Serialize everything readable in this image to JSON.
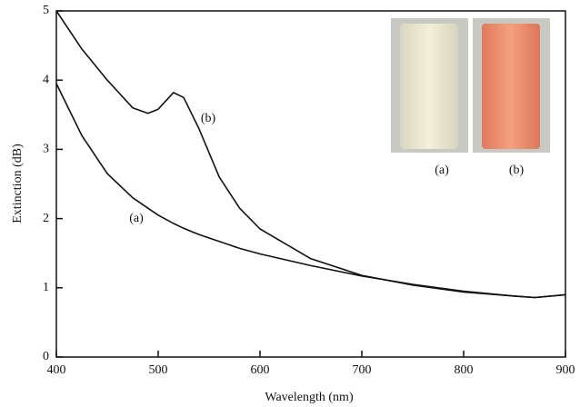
{
  "chart_data": {
    "type": "line",
    "x_label": "Wavelength (nm)",
    "y_label": "Extinction (dB)",
    "x": [
      400,
      425,
      450,
      475,
      490,
      500,
      515,
      525,
      540,
      560,
      580,
      600,
      650,
      700,
      750,
      800,
      850,
      870,
      900
    ],
    "series": [
      {
        "name": "(a)",
        "color": "#111111",
        "values": [
          3.95,
          3.2,
          2.65,
          2.3,
          2.15,
          2.05,
          1.93,
          1.86,
          1.77,
          1.67,
          1.57,
          1.49,
          1.32,
          1.17,
          1.05,
          0.95,
          0.88,
          0.86,
          0.9
        ]
      },
      {
        "name": "(b)",
        "color": "#111111",
        "values": [
          5.0,
          4.45,
          4.0,
          3.6,
          3.52,
          3.58,
          3.82,
          3.75,
          3.3,
          2.6,
          2.15,
          1.85,
          1.42,
          1.18,
          1.04,
          0.94,
          0.88,
          0.86,
          0.9
        ]
      }
    ],
    "xlim": [
      400,
      900
    ],
    "xticks": [
      400,
      500,
      600,
      700,
      800,
      900
    ],
    "ylim": [
      0,
      5
    ],
    "yticks": [
      0,
      1,
      2,
      3,
      4,
      5
    ],
    "inset_labels": [
      "(a)",
      "(b)"
    ]
  }
}
